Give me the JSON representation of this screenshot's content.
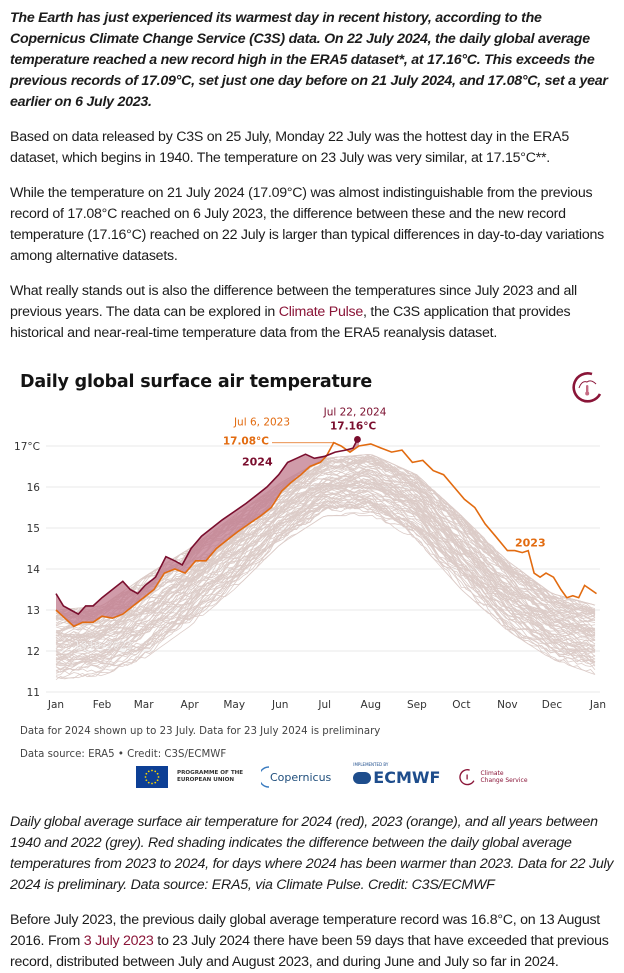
{
  "article": {
    "lead": "The Earth has just experienced its warmest day in recent history, according to the Copernicus Climate Change Service (C3S) data. On 22 July 2024, the daily global average temperature reached a new record high in the ERA5 dataset*, at 17.16°C. This exceeds the previous records of 17.09°C, set just one day before on 21 July 2024, and 17.08°C, set a year earlier on 6 July 2023.",
    "para1": "Based on data released by C3S on 25 July, Monday 22 July was the hottest day in the ERA5 dataset, which begins in 1940. The temperature on 23 July was very similar, at 17.15°C**.",
    "para2": "While the temperature on 21 July 2024 (17.09°C) was almost indistinguishable from the previous record of 17.08°C reached on 6 July 2023, the difference between these and the new record temperature (17.16°C) reached on 22 July is larger than typical differences in day-to-day variations among alternative datasets.",
    "para3_before": "What really stands out is also the difference between the temperatures since July 2023 and all previous years. The data can be explored in ",
    "para3_link": "Climate Pulse",
    "para3_after": ", the C3S application that provides historical and near-real-time temperature data from the ERA5 reanalysis dataset.",
    "caption": "Daily global average surface air temperature for 2024 (red), 2023 (orange), and all years between 1940 and 2022 (grey). Red shading indicates the difference between the daily global average temperatures from 2023 to 2024, for days where 2024 has been warmer than 2023. Data for 22 July 2024 is preliminary. Data source: ERA5, via Climate Pulse. Credit: C3S/ECMWF",
    "para4_before": "Before July 2023, the previous daily global average temperature record was 16.8°C, on 13 August 2016. From ",
    "para4_link": "3 July 2023",
    "para4_after": "  to 23 July 2024 there have been 59 days that have exceeded that previous record, distributed between July and August 2023, and during June and July so far in 2024."
  },
  "chart_notes": {
    "note1": "Data for 2024 shown up to 23 July. Data for 23 July 2024 is preliminary",
    "note2": "Data source: ERA5 • Credit: C3S/ECMWF"
  },
  "logos": {
    "eu_text": "PROGRAMME OF THE EUROPEAN UNION",
    "copernicus": "Copernicus",
    "ecmwf_small": "IMPLEMENTED BY",
    "ecmwf": "ECMWF",
    "ccs_line1": "Climate",
    "ccs_line2": "Change Service"
  },
  "colors": {
    "series_2024": "#7a0e2e",
    "series_2023": "#e26b10",
    "historic": "#dcccc8",
    "shade": "#c07a8c",
    "grid": "#e8e8e8",
    "link": "#8a1538"
  },
  "chart_data": {
    "type": "line",
    "title": "Daily global surface air temperature",
    "xlabel": "",
    "ylabel": "°C",
    "ylim": [
      11,
      17.5
    ],
    "y_ticks": [
      11,
      12,
      13,
      14,
      15,
      16,
      17
    ],
    "y_tick_labels": [
      "11",
      "12",
      "13",
      "14",
      "15",
      "16",
      "17°C"
    ],
    "x_tick_labels": [
      "Jan",
      "Feb",
      "Mar",
      "Apr",
      "May",
      "Jun",
      "Jul",
      "Aug",
      "Sep",
      "Oct",
      "Nov",
      "Dec",
      "Jan"
    ],
    "x_unit": "day of year (0-365)",
    "grid": true,
    "series": [
      {
        "name": "2024",
        "label": "2024",
        "x": [
          0,
          5,
          10,
          15,
          20,
          25,
          31,
          38,
          45,
          50,
          55,
          60,
          67,
          74,
          80,
          85,
          91,
          98,
          105,
          112,
          120,
          128,
          135,
          142,
          150,
          156,
          162,
          168,
          174,
          181,
          188,
          195,
          200,
          202,
          203,
          204
        ],
        "values": [
          13.4,
          13.1,
          13.0,
          12.9,
          13.1,
          13.1,
          13.3,
          13.5,
          13.7,
          13.5,
          13.4,
          13.6,
          13.8,
          14.3,
          14.2,
          14.1,
          14.5,
          14.8,
          15.0,
          15.2,
          15.4,
          15.6,
          15.8,
          16.0,
          16.3,
          16.6,
          16.7,
          16.8,
          16.7,
          16.75,
          16.85,
          16.9,
          16.95,
          17.09,
          17.16,
          17.15
        ]
      },
      {
        "name": "2023",
        "label": "2023",
        "x": [
          0,
          6,
          12,
          18,
          25,
          31,
          38,
          45,
          52,
          59,
          66,
          73,
          80,
          87,
          94,
          101,
          108,
          115,
          122,
          130,
          138,
          145,
          152,
          158,
          165,
          171,
          178,
          182,
          187,
          192,
          198,
          204,
          212,
          219,
          226,
          233,
          240,
          247,
          254,
          261,
          268,
          275,
          282,
          289,
          296,
          304,
          309,
          314,
          318,
          322,
          326,
          330,
          335,
          340,
          344,
          348,
          352,
          356,
          360,
          364
        ],
        "values": [
          13.0,
          12.8,
          12.6,
          12.7,
          12.7,
          12.85,
          12.8,
          12.9,
          13.1,
          13.3,
          13.5,
          13.9,
          14.0,
          13.9,
          14.2,
          14.2,
          14.5,
          14.7,
          14.9,
          15.1,
          15.3,
          15.5,
          15.9,
          16.1,
          16.3,
          16.5,
          16.6,
          16.75,
          17.08,
          17.0,
          16.85,
          17.0,
          17.05,
          16.95,
          16.85,
          16.9,
          16.6,
          16.65,
          16.4,
          16.3,
          16.0,
          15.7,
          15.5,
          15.1,
          14.8,
          14.45,
          14.45,
          14.4,
          14.45,
          13.9,
          13.8,
          13.9,
          13.8,
          13.5,
          13.3,
          13.35,
          13.3,
          13.6,
          13.5,
          13.4
        ]
      },
      {
        "name": "1940-2022",
        "label": "1940–2022",
        "envelope_x": [
          0,
          31,
          59,
          90,
          120,
          151,
          181,
          212,
          243,
          273,
          304,
          334,
          365
        ],
        "envelope_low": [
          11.3,
          11.4,
          11.8,
          12.6,
          13.5,
          14.6,
          15.3,
          15.3,
          14.7,
          13.5,
          12.5,
          11.8,
          11.4
        ],
        "envelope_high": [
          13.0,
          13.1,
          13.8,
          14.5,
          15.3,
          16.1,
          16.7,
          16.8,
          16.3,
          15.3,
          14.2,
          13.4,
          13.1
        ]
      }
    ],
    "annotations": [
      {
        "text_date": "Jul 6, 2023",
        "text_value": "17.08°C",
        "x": 187,
        "y": 17.08,
        "series": "2023"
      },
      {
        "text_date": "Jul 22, 2024",
        "text_value": "17.16°C",
        "x": 203,
        "y": 17.16,
        "series": "2024"
      }
    ],
    "shading": "area between 2024 and 2023 where 2024 > 2023"
  }
}
